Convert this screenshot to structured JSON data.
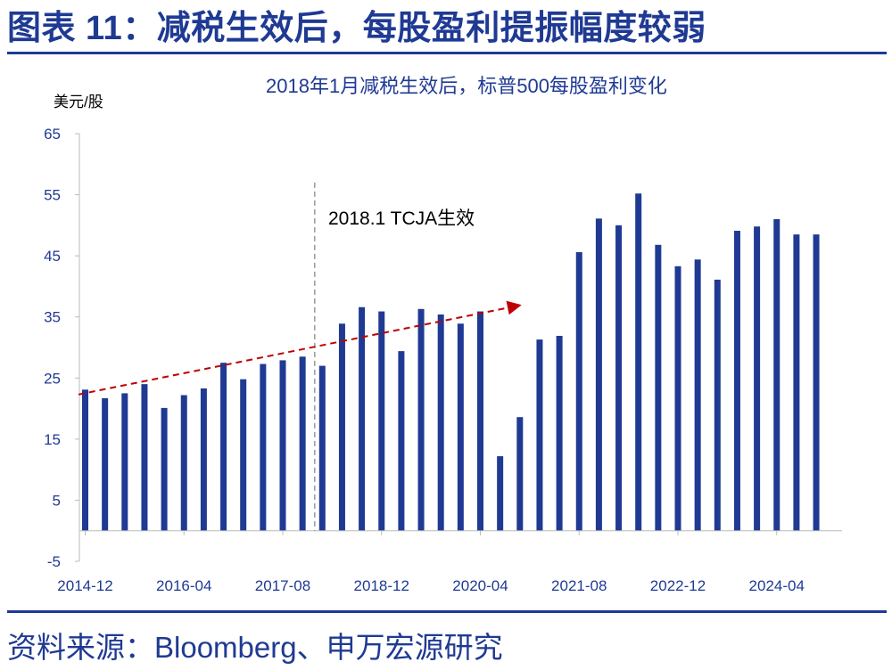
{
  "header": {
    "title": "图表 11：减税生效后，每股盈利提振幅度较弱"
  },
  "footer": {
    "source": "资料来源：Bloomberg、申万宏源研究"
  },
  "chart_data": {
    "type": "bar",
    "title": "2018年1月减税生效后，标普500每股盈利变化",
    "ylabel": "美元/股",
    "xlabel": "",
    "ylim": [
      -5,
      65
    ],
    "yticks": [
      "65",
      "55",
      "45",
      "35",
      "25",
      "15",
      "5",
      "-5"
    ],
    "xtick_labels": [
      "2014-12",
      "2016-04",
      "2017-08",
      "2018-12",
      "2020-04",
      "2021-08",
      "2022-12",
      "2024-04"
    ],
    "xtick_indices": [
      0,
      5,
      10,
      15,
      20,
      25,
      30,
      35
    ],
    "categories": [
      "2014-12",
      "2015-03",
      "2015-06",
      "2015-09",
      "2015-12",
      "2016-03",
      "2016-06",
      "2016-09",
      "2016-12",
      "2017-03",
      "2017-06",
      "2017-09",
      "2017-12",
      "2018-03",
      "2018-06",
      "2018-09",
      "2018-12",
      "2019-03",
      "2019-06",
      "2019-09",
      "2019-12",
      "2020-03",
      "2020-06",
      "2020-09",
      "2020-12",
      "2021-03",
      "2021-06",
      "2021-09",
      "2021-12",
      "2022-03",
      "2022-06",
      "2022-09",
      "2022-12",
      "2023-03",
      "2023-06",
      "2023-09",
      "2023-12",
      "2024-03"
    ],
    "values": [
      23.1,
      21.7,
      22.5,
      24.0,
      20.1,
      22.2,
      23.3,
      27.5,
      24.8,
      27.3,
      27.9,
      28.5,
      27.0,
      33.9,
      36.6,
      35.9,
      29.4,
      36.3,
      35.4,
      33.9,
      35.9,
      12.2,
      18.6,
      31.3,
      31.9,
      45.6,
      51.1,
      50.0,
      55.2,
      46.8,
      43.3,
      44.4,
      41.1,
      49.1,
      49.8,
      51.0,
      48.5,
      48.5
    ],
    "bar_color": "#1F3A93",
    "event_line": {
      "label": "2018.1 TCJA生效",
      "after_index": 12,
      "style": "dashed",
      "color": "#999999"
    },
    "trend_arrow": {
      "from": [
        0,
        22.3
      ],
      "to": [
        22,
        36.9
      ],
      "style": "dashed",
      "color": "#C00000"
    },
    "grid": false
  }
}
